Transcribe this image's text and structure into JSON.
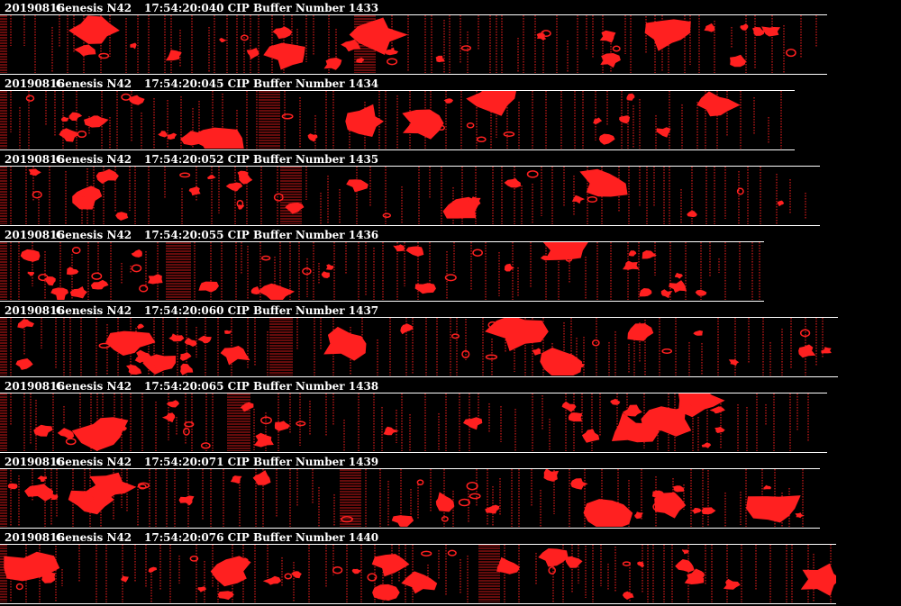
{
  "colors": {
    "background": "#000000",
    "particle": "#ff2020",
    "text": "#ffffff",
    "rule": "#ffffff"
  },
  "buffers": [
    {
      "date": "20190816",
      "probe": "Genesis N42",
      "meta": "17:54:20:040 CIP Buffer Number 1433"
    },
    {
      "date": "20190816",
      "probe": "Genesis N42",
      "meta": "17:54:20:045 CIP Buffer Number 1434"
    },
    {
      "date": "20190816",
      "probe": "Genesis N42",
      "meta": "17:54:20:052 CIP Buffer Number 1435"
    },
    {
      "date": "20190816",
      "probe": "Genesis N42",
      "meta": "17:54:20:055 CIP Buffer Number 1436"
    },
    {
      "date": "20190816",
      "probe": "Genesis N42",
      "meta": "17:54:20:060 CIP Buffer Number 1437"
    },
    {
      "date": "20190816",
      "probe": "Genesis N42",
      "meta": "17:54:20:065 CIP Buffer Number 1438"
    },
    {
      "date": "20190816",
      "probe": "Genesis N42",
      "meta": "17:54:20:071 CIP Buffer Number 1439"
    },
    {
      "date": "20190816",
      "probe": "Genesis N42",
      "meta": "17:54:20:076 CIP Buffer Number 1440"
    }
  ]
}
